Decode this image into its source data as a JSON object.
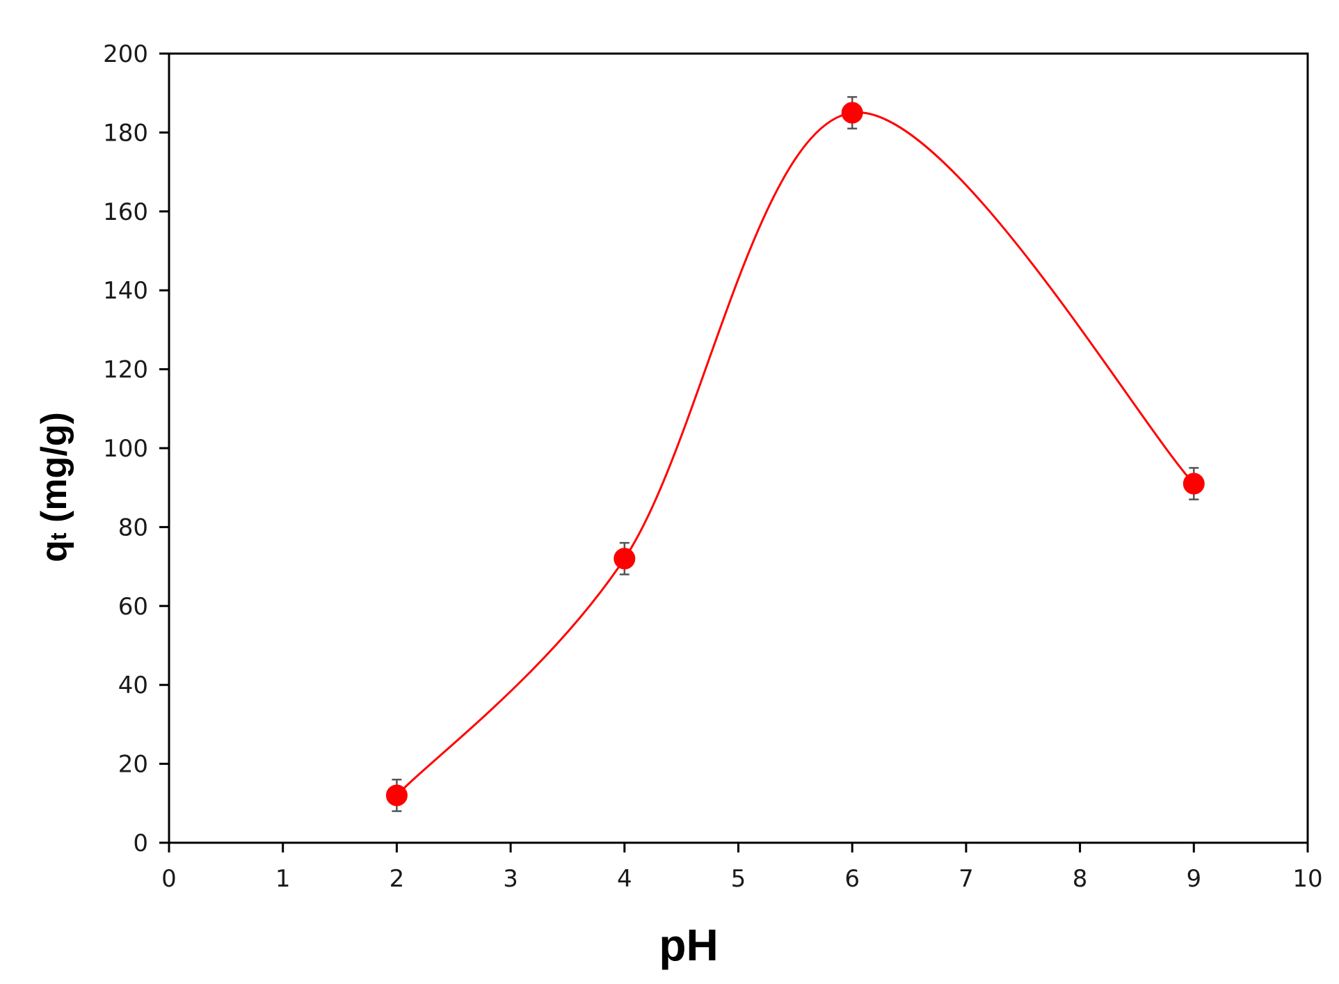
{
  "chart_data": {
    "type": "scatter",
    "title": "",
    "xlabel": "pH",
    "ylabel": "q",
    "ylabel_subscript": "t",
    "ylabel_unit": " (mg/g)",
    "xlim": [
      0,
      10
    ],
    "ylim": [
      0,
      200
    ],
    "x_ticks": [
      0,
      1,
      2,
      3,
      4,
      5,
      6,
      7,
      8,
      9,
      10
    ],
    "y_ticks": [
      0,
      20,
      40,
      60,
      80,
      100,
      120,
      140,
      160,
      180,
      200
    ],
    "grid": false,
    "legend": "none",
    "series": [
      {
        "x": [
          2,
          4,
          6,
          9
        ],
        "y": [
          12,
          72,
          185,
          91
        ],
        "error": [
          4,
          4,
          4,
          4
        ],
        "smooth_line": true,
        "color": "#ff0000"
      }
    ],
    "colors": {
      "marker": "#ff0000",
      "line": "#ff0000",
      "axis": "#000000",
      "error_bar": "#555555"
    }
  }
}
